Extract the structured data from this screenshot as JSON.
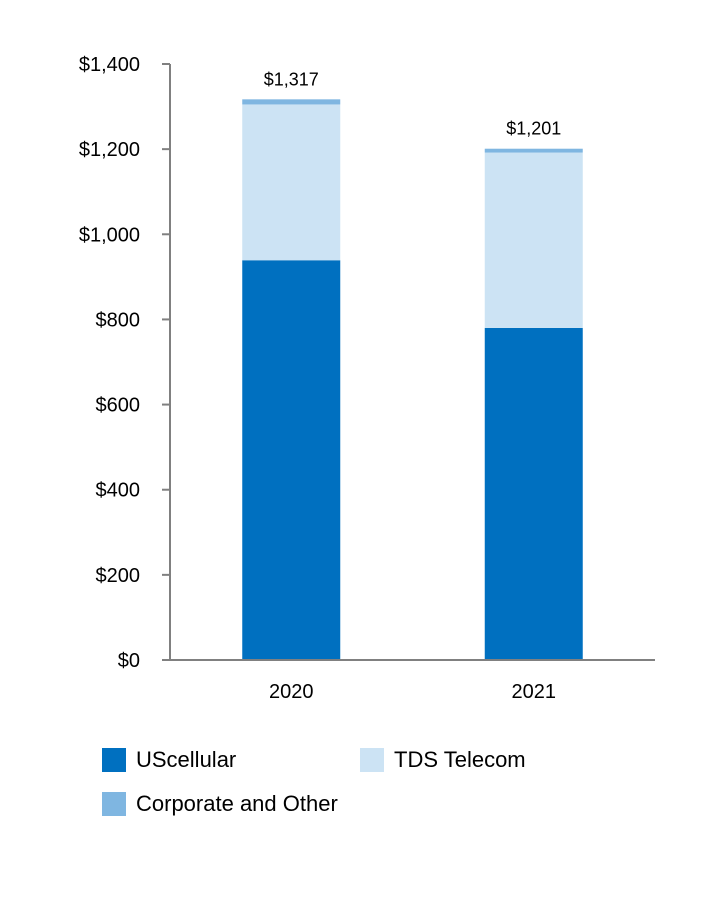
{
  "chart_data": {
    "type": "bar",
    "stacked": true,
    "categories": [
      "2020",
      "2021"
    ],
    "series": [
      {
        "name": "UScellular",
        "values": [
          939,
          780
        ],
        "color": "#0070C0"
      },
      {
        "name": "TDS Telecom",
        "values": [
          366,
          412
        ],
        "color": "#CCE3F4"
      },
      {
        "name": "Corporate and Other",
        "values": [
          12,
          9
        ],
        "color": "#7FB6E1"
      }
    ],
    "totals": [
      "$1,317",
      "$1,201"
    ],
    "y_ticks": [
      0,
      200,
      400,
      600,
      800,
      1000,
      1200,
      1400
    ],
    "y_tick_labels": [
      "$0",
      "$200",
      "$400",
      "$600",
      "$800",
      "$1,000",
      "$1,200",
      "$1,400"
    ],
    "ylim": [
      0,
      1400
    ],
    "title": "",
    "xlabel": "",
    "ylabel": "",
    "legend_position": "bottom",
    "grid": false
  }
}
